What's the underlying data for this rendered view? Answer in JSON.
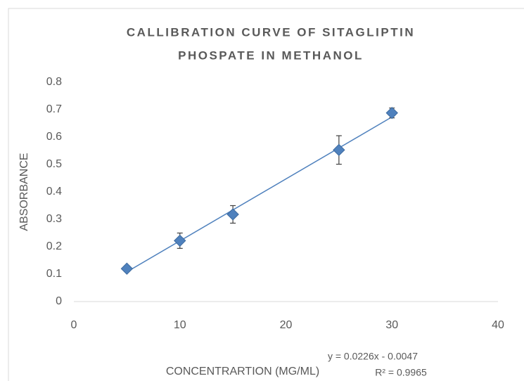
{
  "chart_data": {
    "type": "scatter",
    "title": [
      "CALLIBRATION CURVE OF SITAGLIPTIN",
      "PHOSPATE IN METHANOL"
    ],
    "x_label": "CONCENTRARTION (MG/ML)",
    "y_label": "ABSORBANCE",
    "series": [
      {
        "name": "Absorbance",
        "color": "#4f81bd",
        "x": [
          5,
          10,
          15,
          25,
          30
        ],
        "values": [
          0.12,
          0.222,
          0.318,
          0.553,
          0.688
        ],
        "errors": [
          0.01,
          0.028,
          0.032,
          0.052,
          0.018
        ]
      }
    ],
    "trendline": {
      "x": [
        5,
        30
      ],
      "y": [
        0.1083,
        0.6733
      ],
      "color": "#4f81bd",
      "equation": "y = 0.0226x - 0.0047",
      "r2": "R² = 0.9965"
    },
    "xlim": [
      0,
      40
    ],
    "xticks": [
      0,
      10,
      20,
      30,
      40
    ],
    "ylim": [
      0,
      0.8
    ],
    "yticks": [
      0,
      0.1,
      0.2,
      0.3,
      0.4,
      0.5,
      0.6,
      0.7,
      0.8
    ],
    "grid": false
  }
}
